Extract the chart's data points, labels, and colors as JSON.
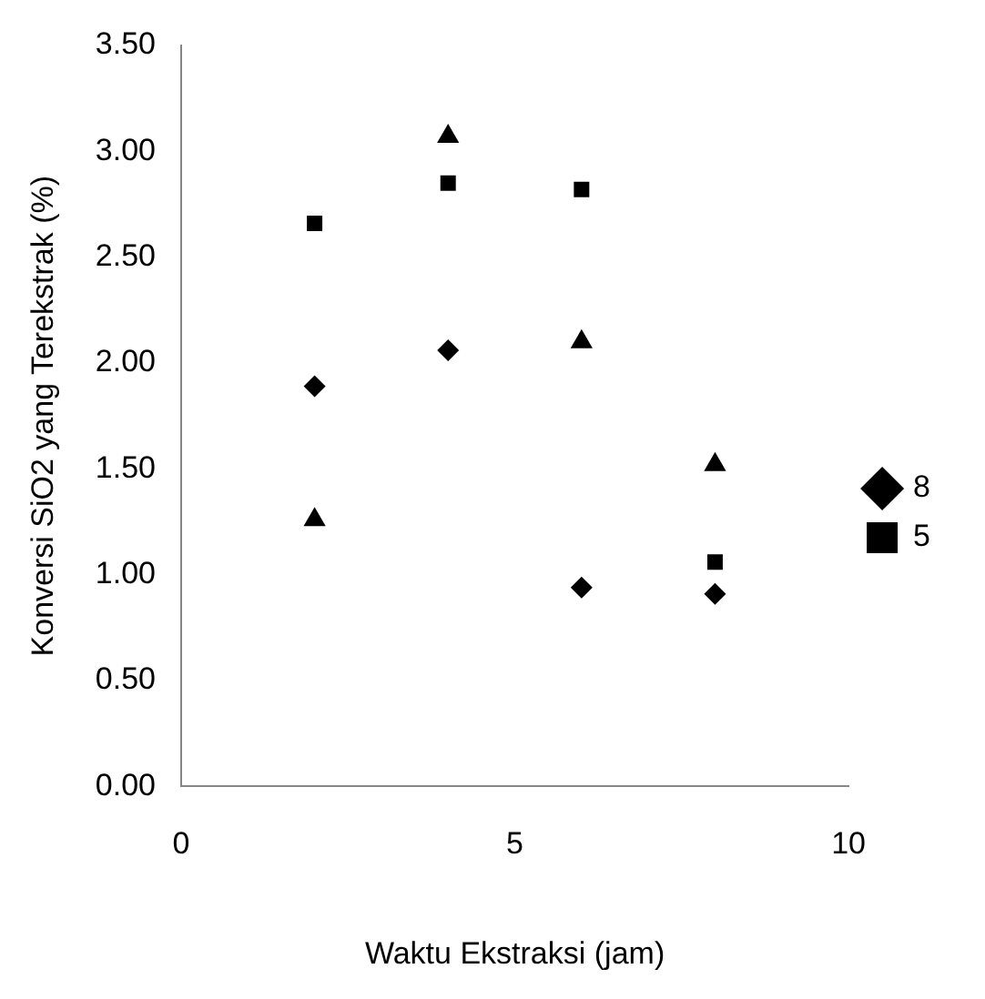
{
  "chart_data": {
    "type": "scatter",
    "xlabel": "Waktu Ekstraksi (jam)",
    "ylabel": "Konversi SiO2 yang Terekstrak (%)",
    "x": [
      2,
      4,
      6,
      8
    ],
    "series": [
      {
        "name": "8",
        "color": "#000000",
        "marker": "diamond",
        "values": [
          1.89,
          2.06,
          0.94,
          0.91
        ]
      },
      {
        "name": "5",
        "color": "#000000",
        "marker": "square",
        "values": [
          2.66,
          2.85,
          2.82,
          1.06
        ]
      },
      {
        "color": "#000000",
        "marker": "triangle",
        "values": [
          1.26,
          3.07,
          2.1,
          1.52
        ]
      }
    ],
    "xlim": [
      0,
      10
    ],
    "xticks": [
      0,
      5,
      10
    ],
    "ylim": [
      0,
      3.5
    ],
    "yticks": [
      {
        "value": 0,
        "label": "0.00"
      },
      {
        "value": 0.5,
        "label": "0.50"
      },
      {
        "value": 1,
        "label": "1.00"
      },
      {
        "value": 1.5,
        "label": "1.50"
      },
      {
        "value": 2,
        "label": "2.00"
      },
      {
        "value": 2.5,
        "label": "2.50"
      },
      {
        "value": 3,
        "label": "3.00"
      },
      {
        "value": 3.5,
        "label": "3.50"
      }
    ],
    "grid": false,
    "legend": "right"
  }
}
